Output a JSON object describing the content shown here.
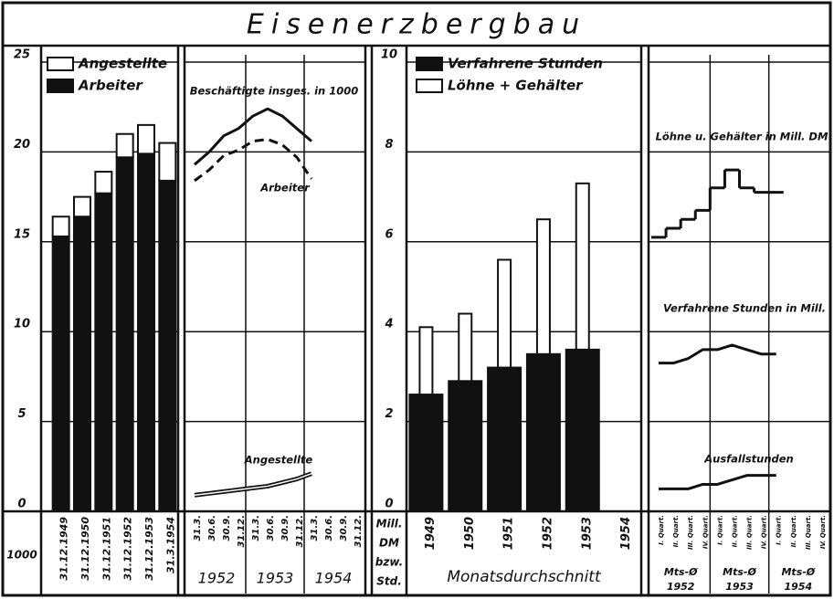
{
  "title": "Eisenerzbergbau",
  "chart_data": [
    {
      "type": "bar",
      "stacked": true,
      "unit_label": "1000",
      "categories": [
        "31.12.1949",
        "31.12.1950",
        "31.12.1951",
        "31.12.1952",
        "31.12.1953",
        "31.3.1954"
      ],
      "series": [
        {
          "name": "Arbeiter",
          "color": "#111111",
          "values": [
            15.3,
            16.4,
            17.7,
            19.7,
            19.9,
            18.4
          ]
        },
        {
          "name": "Angestellte",
          "color": "#ffffff",
          "values": [
            1.1,
            1.1,
            1.2,
            1.3,
            1.6,
            2.1
          ]
        }
      ],
      "ylim": [
        0,
        25
      ],
      "yticks": [
        0,
        5,
        10,
        15,
        20,
        25
      ],
      "grid": true
    },
    {
      "type": "line",
      "categories": [
        "31.3.",
        "30.6.",
        "30.9.",
        "31.12.",
        "31.3.",
        "30.6.",
        "30.9.",
        "31.12.",
        "31.3.",
        "30.6.",
        "30.9.",
        "31.12."
      ],
      "groups": [
        "1952",
        "1953",
        "1954"
      ],
      "series": [
        {
          "name": "Beschäftigte insges. in 1000",
          "color": "#111111",
          "style": "solid",
          "values": [
            19.3,
            20.0,
            20.9,
            21.3,
            22.0,
            22.4,
            22.0,
            21.3,
            20.6,
            null,
            null,
            null
          ]
        },
        {
          "name": "Arbeiter",
          "color": "#111111",
          "style": "dashed",
          "values": [
            18.4,
            19.0,
            19.8,
            20.1,
            20.6,
            20.7,
            20.4,
            19.7,
            18.5,
            null,
            null,
            null
          ]
        },
        {
          "name": "Angestellte",
          "color": "#111111",
          "style": "double",
          "values": [
            0.9,
            1.0,
            1.1,
            1.2,
            1.3,
            1.4,
            1.6,
            1.8,
            2.1,
            null,
            null,
            null
          ]
        }
      ],
      "ylim": [
        0,
        25
      ]
    },
    {
      "type": "overlay-bar",
      "unit_labels": [
        "Mill.",
        "DM",
        "bzw.",
        "Std."
      ],
      "xlabel": "Monatsdurchschnitt",
      "categories": [
        "1949",
        "1950",
        "1951",
        "1952",
        "1953",
        "1954"
      ],
      "series": [
        {
          "name": "Löhne + Gehälter",
          "color": "#ffffff",
          "values": [
            4.1,
            4.4,
            5.6,
            6.5,
            7.3,
            null
          ]
        },
        {
          "name": "Verfahrene Stunden",
          "color": "#111111",
          "values": [
            2.6,
            2.9,
            3.2,
            3.5,
            3.6,
            null
          ]
        }
      ],
      "ylim": [
        0,
        10
      ],
      "yticks": [
        0,
        2,
        4,
        6,
        8,
        10
      ],
      "grid": true
    },
    {
      "type": "step",
      "categories": [
        "I. Quart.",
        "II. Quart.",
        "III. Quart.",
        "IV. Quart.",
        "I. Quart.",
        "II. Quart.",
        "III. Quart.",
        "IV. Quart.",
        "I. Quart.",
        "II. Quart.",
        "III. Quart.",
        "IV. Quart."
      ],
      "group_label": "Mts-Ø",
      "groups": [
        "1952",
        "1953",
        "1954"
      ],
      "series": [
        {
          "name": "Löhne u. Gehälter in Mill. DM",
          "color": "#111111",
          "style": "step",
          "values": [
            6.1,
            6.3,
            6.5,
            6.7,
            7.2,
            7.6,
            7.2,
            7.1,
            7.1,
            null,
            null,
            null
          ]
        },
        {
          "name": "Verfahrene Stunden in Mill.",
          "color": "#111111",
          "style": "line",
          "values": [
            3.3,
            3.3,
            3.4,
            3.6,
            3.6,
            3.7,
            3.6,
            3.5,
            3.5,
            null,
            null,
            null
          ]
        },
        {
          "name": "Ausfallstunden",
          "color": "#111111",
          "style": "line",
          "values": [
            0.5,
            0.5,
            0.5,
            0.6,
            0.6,
            0.7,
            0.8,
            0.8,
            0.8,
            null,
            null,
            null
          ]
        }
      ],
      "ylim": [
        0,
        10
      ]
    }
  ]
}
